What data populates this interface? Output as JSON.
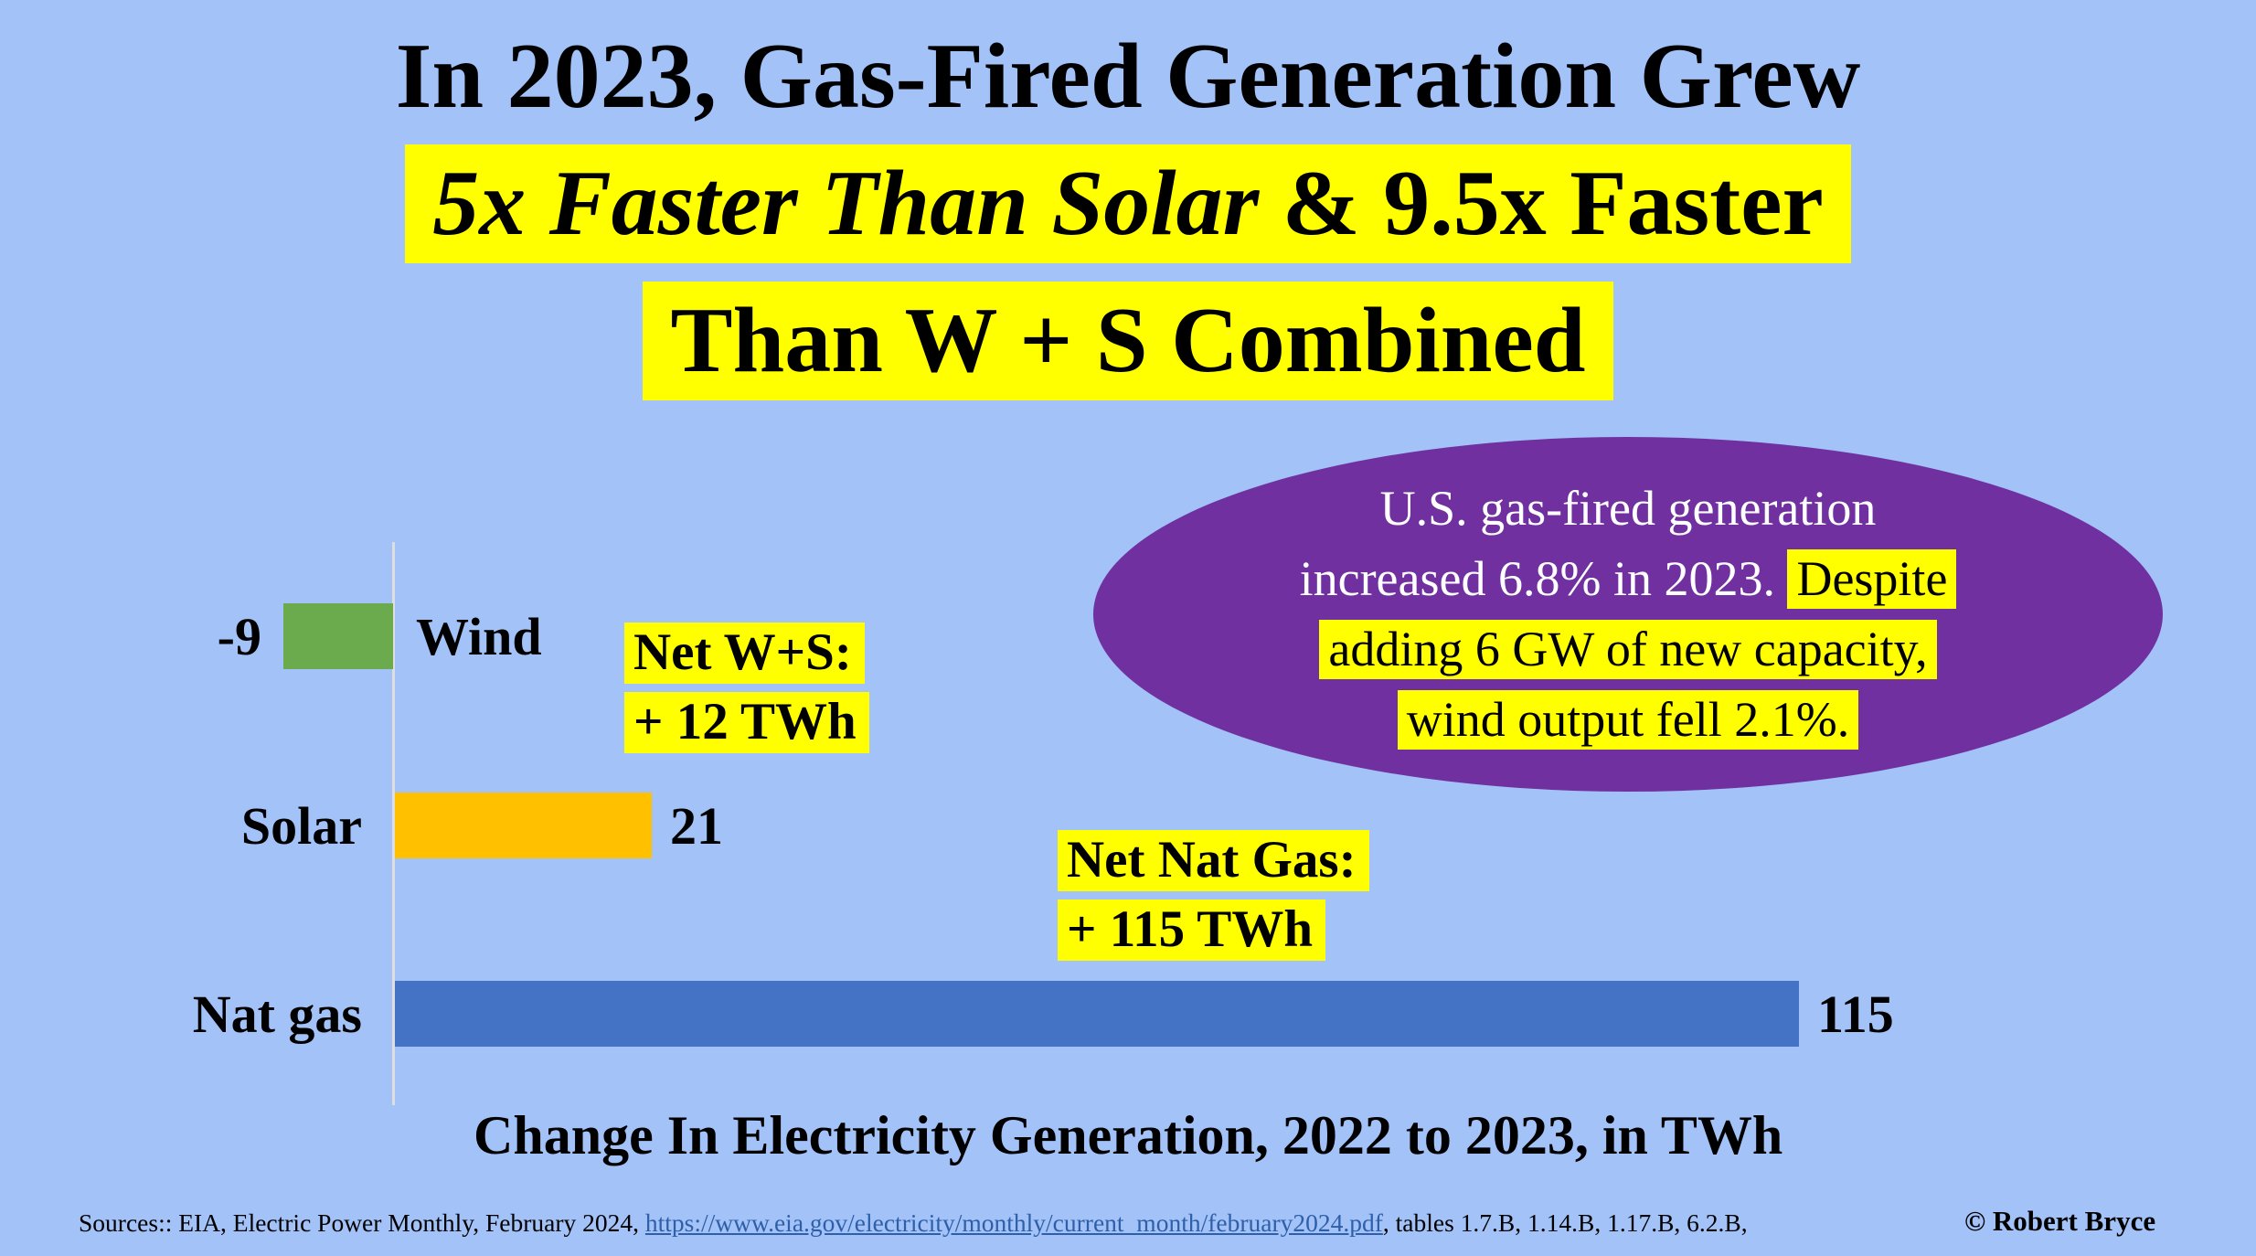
{
  "title": {
    "line1": "In 2023, Gas-Fired Generation Grew",
    "line2_italic": "5x Faster Than Solar",
    "line2_rest": " & 9.5x Faster",
    "line3": "Than W + S Combined"
  },
  "chart_data": {
    "type": "bar",
    "orientation": "horizontal",
    "categories": [
      "Wind",
      "Solar",
      "Nat gas"
    ],
    "values": [
      -9,
      21,
      115
    ],
    "value_labels": [
      "-9",
      "21",
      "115"
    ],
    "bar_colors": [
      "#6CAA4E",
      "#FFC000",
      "#4472C4"
    ],
    "title": "",
    "xlabel": "Change In Electricity Generation, 2022 to 2023, in TWh",
    "ylabel": "",
    "axis_range": [
      -9,
      115
    ],
    "gridlines": false,
    "legend": "none",
    "baseline_axis_color": "#DEDEDE"
  },
  "annotations": {
    "net_ws": {
      "line1": "Net W+S:",
      "line2": "+ 12 TWh"
    },
    "net_gas": {
      "line1": "Net Nat Gas:",
      "line2": "+ 115 TWh"
    }
  },
  "ellipse": {
    "line1": "U.S. gas-fired generation",
    "line2_plain": "increased 6.8% in 2023.",
    "line2_highlight": "Despite",
    "line3_highlight": "adding 6 GW of new capacity,",
    "line4_highlight": "wind output fell 2.1%.",
    "fill_color": "#7030A0",
    "text_color": "#FFFFFF"
  },
  "caption": "Change In Electricity Generation, 2022 to 2023, in TWh",
  "footer": {
    "sources_prefix": "Sources:: EIA, Electric Power Monthly, February 2024, ",
    "link_text": "https://www.eia.gov/electricity/monthly/current_month/february2024.pdf",
    "sources_suffix": ", tables 1.7.B, 1.14.B, 1.17.B, 6.2.B,",
    "copyright": "© Robert Bryce"
  },
  "colors": {
    "background": "#A2C2F8",
    "highlight_yellow": "#FFFF00",
    "link_blue": "#2E5FA8",
    "wind_bar": "#6CAA4E",
    "solar_bar": "#FFC000",
    "gas_bar": "#4472C4",
    "ellipse_purple": "#7030A0"
  }
}
